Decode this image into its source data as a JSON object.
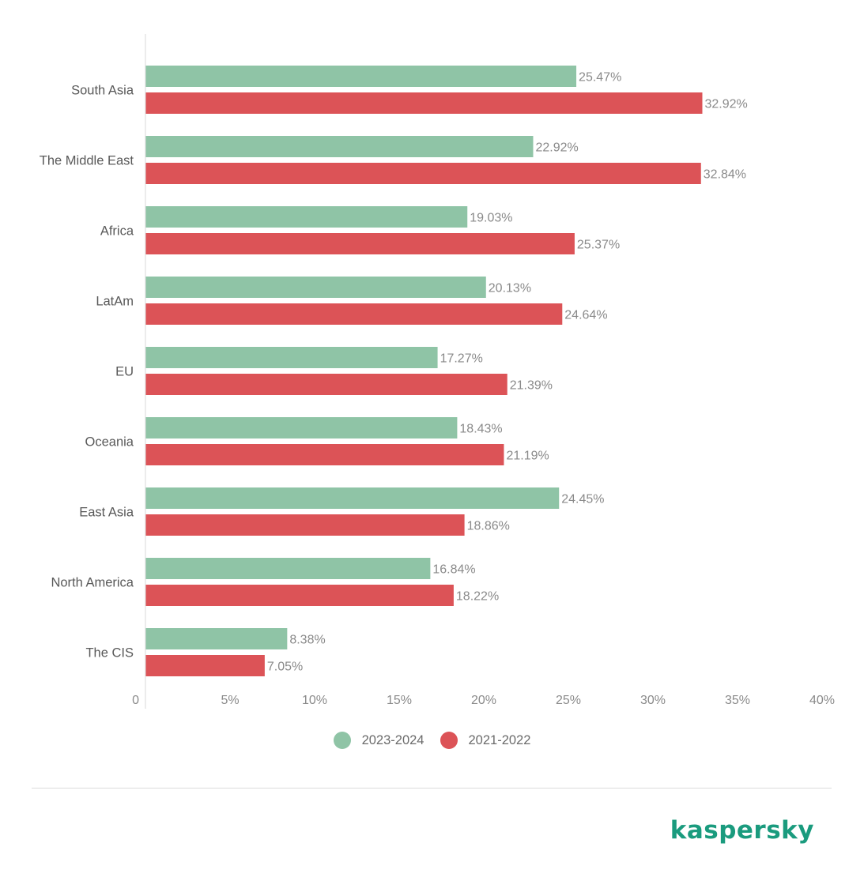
{
  "chart_data": {
    "type": "bar",
    "orientation": "horizontal",
    "categories": [
      "South Asia",
      "The Middle East",
      "Africa",
      "LatAm",
      "EU",
      "Oceania",
      "East Asia",
      "North America",
      "The CIS"
    ],
    "series": [
      {
        "name": "2023-2024",
        "color": "#8fc4a6",
        "values": [
          25.47,
          22.92,
          19.03,
          20.13,
          17.27,
          18.43,
          24.45,
          16.84,
          8.38
        ],
        "labels": [
          "25.47%",
          "22.92%",
          "19.03%",
          "20.13%",
          "17.27%",
          "18.43%",
          "24.45%",
          "16.84%",
          "8.38%"
        ]
      },
      {
        "name": "2021-2022",
        "color": "#dc5357",
        "values": [
          32.92,
          32.84,
          25.37,
          24.64,
          21.39,
          21.19,
          18.86,
          18.22,
          7.05
        ],
        "labels": [
          "32.92%",
          "32.84%",
          "25.37%",
          "24.64%",
          "21.39%",
          "21.19%",
          "18.86%",
          "18.22%",
          "7.05%"
        ]
      }
    ],
    "xlim": [
      0,
      40
    ],
    "xticks": [
      0,
      5,
      10,
      15,
      20,
      25,
      30,
      35,
      40
    ],
    "xtick_labels": [
      "0",
      "5%",
      "10%",
      "15%",
      "20%",
      "25%",
      "30%",
      "35%",
      "40%"
    ],
    "title": "",
    "xlabel": "",
    "ylabel": "",
    "grid": false,
    "legend_position": "bottom-center"
  },
  "legend": {
    "items": [
      {
        "label": "2023-2024",
        "color": "#8fc4a6"
      },
      {
        "label": "2021-2022",
        "color": "#dc5357"
      }
    ]
  },
  "brand": {
    "logo_text": "kaspersky",
    "color": "#1a9b7e"
  }
}
